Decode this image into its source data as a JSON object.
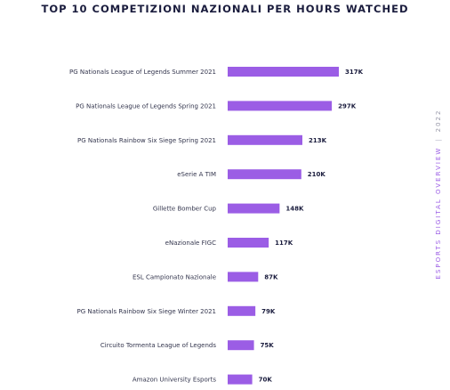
{
  "chart_data": {
    "type": "bar",
    "orientation": "horizontal",
    "title": "TOP 10 COMPETIZIONI NAZIONALI PER HOURS WATCHED",
    "categories": [
      "PG Nationals League of Legends Summer 2021",
      "PG Nationals League of Legends Spring 2021",
      "PG Nationals Rainbow Six Siege Spring 2021",
      "eSerie A TIM",
      "Gillette Bomber Cup",
      "eNazionale FIGC",
      "ESL Campionato Nazionale",
      "PG Nationals Rainbow Six Siege Winter 2021",
      "Circuito Tormenta League of Legends",
      "Amazon University Esports"
    ],
    "values": [
      317,
      297,
      213,
      210,
      148,
      117,
      87,
      79,
      75,
      70
    ],
    "value_labels": [
      "317K",
      "297K",
      "213K",
      "210K",
      "148K",
      "117K",
      "87K",
      "79K",
      "75K",
      "70K"
    ],
    "bar_color": "#9b5de5",
    "grid": false,
    "legend": "none"
  },
  "side_label": {
    "text": "ESPORTS DIGITAL OVERVIEW",
    "separator": "|",
    "year": "2022"
  }
}
